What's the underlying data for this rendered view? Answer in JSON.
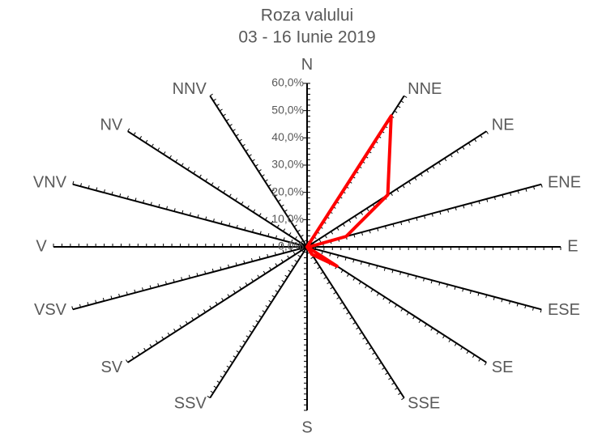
{
  "chart_data": {
    "type": "radar",
    "title": "Roza valului",
    "subtitle": "03 - 16 Iunie 2019",
    "categories": [
      "N",
      "NNE",
      "NE",
      "ENE",
      "E",
      "ESE",
      "SE",
      "SSE",
      "S",
      "SSV",
      "SV",
      "VSV",
      "V",
      "VNV",
      "NV",
      "NNV"
    ],
    "series": [
      {
        "name": "Roza valului",
        "color": "#ff0000",
        "values": [
          0,
          52,
          27,
          10,
          0.5,
          0,
          10,
          3,
          0,
          0,
          0,
          0,
          0,
          0,
          0,
          0
        ]
      }
    ],
    "ylim": [
      0,
      60
    ],
    "yticks": [
      {
        "value": 0,
        "label": "0,0%"
      },
      {
        "value": 10,
        "label": "10,0%"
      },
      {
        "value": 20,
        "label": "20,0%"
      },
      {
        "value": 30,
        "label": "30,0%"
      },
      {
        "value": 40,
        "label": "40,0%"
      },
      {
        "value": 50,
        "label": "50,0%"
      },
      {
        "value": 60,
        "label": "60,0%"
      }
    ]
  }
}
